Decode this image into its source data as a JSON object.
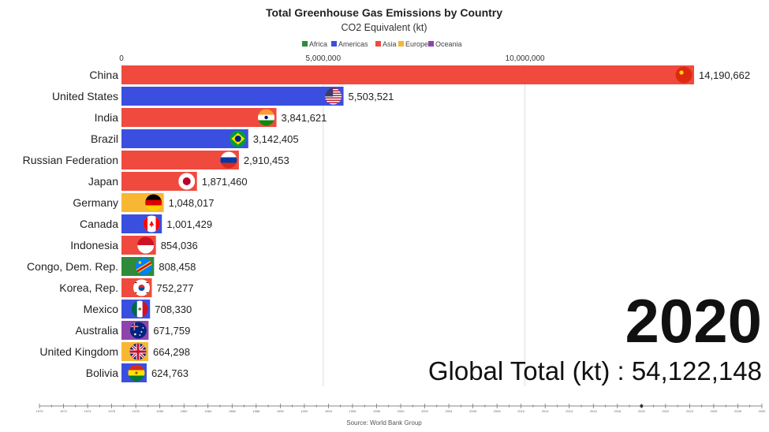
{
  "chart_data": {
    "type": "bar",
    "orientation": "horizontal",
    "title": "Total Greenhouse Gas Emissions by Country",
    "subtitle": "CO2 Equivalent (kt)",
    "legend": [
      {
        "name": "Africa",
        "color": "#2e8b3a"
      },
      {
        "name": "Americas",
        "color": "#3a4fe0"
      },
      {
        "name": "Asia",
        "color": "#f04a3e"
      },
      {
        "name": "Europe",
        "color": "#f7b733"
      },
      {
        "name": "Oceania",
        "color": "#8e44ad"
      }
    ],
    "x_ticks": [
      {
        "value": 0,
        "label": "0"
      },
      {
        "value": 5000000,
        "label": "5,000,000"
      },
      {
        "value": 10000000,
        "label": "10,000,000"
      }
    ],
    "xlim": [
      0,
      14190662
    ],
    "bars": [
      {
        "country": "China",
        "value": 14190662,
        "label": "14,190,662",
        "region": "Asia",
        "flag": "china-flag-icon"
      },
      {
        "country": "United States",
        "value": 5503521,
        "label": "5,503,521",
        "region": "Americas",
        "flag": "us-flag-icon"
      },
      {
        "country": "India",
        "value": 3841621,
        "label": "3,841,621",
        "region": "Asia",
        "flag": "india-flag-icon"
      },
      {
        "country": "Brazil",
        "value": 3142405,
        "label": "3,142,405",
        "region": "Americas",
        "flag": "brazil-flag-icon"
      },
      {
        "country": "Russian Federation",
        "value": 2910453,
        "label": "2,910,453",
        "region": "Asia",
        "flag": "russia-flag-icon"
      },
      {
        "country": "Japan",
        "value": 1871460,
        "label": "1,871,460",
        "region": "Asia",
        "flag": "japan-flag-icon"
      },
      {
        "country": "Germany",
        "value": 1048017,
        "label": "1,048,017",
        "region": "Europe",
        "flag": "germany-flag-icon"
      },
      {
        "country": "Canada",
        "value": 1001429,
        "label": "1,001,429",
        "region": "Americas",
        "flag": "canada-flag-icon"
      },
      {
        "country": "Indonesia",
        "value": 854036,
        "label": "854,036",
        "region": "Asia",
        "flag": "indonesia-flag-icon"
      },
      {
        "country": "Congo, Dem. Rep.",
        "value": 808458,
        "label": "808,458",
        "region": "Africa",
        "flag": "congo-flag-icon"
      },
      {
        "country": "Korea, Rep.",
        "value": 752277,
        "label": "752,277",
        "region": "Asia",
        "flag": "korea-flag-icon"
      },
      {
        "country": "Mexico",
        "value": 708330,
        "label": "708,330",
        "region": "Americas",
        "flag": "mexico-flag-icon"
      },
      {
        "country": "Australia",
        "value": 671759,
        "label": "671,759",
        "region": "Oceania",
        "flag": "australia-flag-icon"
      },
      {
        "country": "United Kingdom",
        "value": 664298,
        "label": "664,298",
        "region": "Europe",
        "flag": "uk-flag-icon"
      },
      {
        "country": "Bolivia",
        "value": 624763,
        "label": "624,763",
        "region": "Americas",
        "flag": "bolivia-flag-icon"
      }
    ],
    "year": "2020",
    "global_total_text": "Global Total (kt) : 54,122,148",
    "timeline": {
      "start": 1970,
      "end": 2030,
      "step": 2,
      "current": 2020
    },
    "source": "Source: World Bank Group"
  }
}
